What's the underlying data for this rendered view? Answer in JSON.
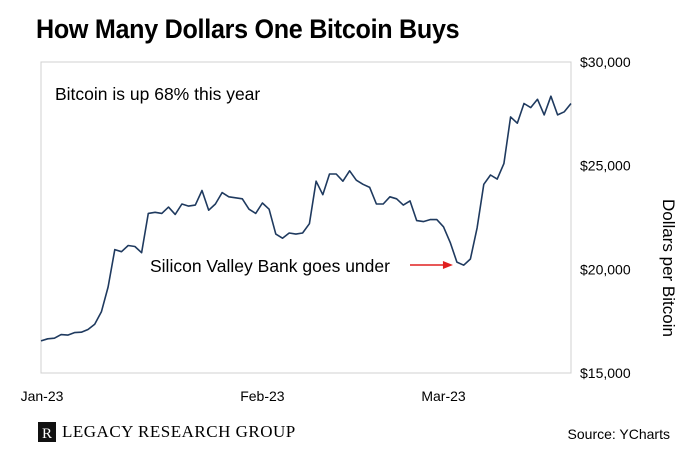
{
  "header": {
    "title": "How Many Dollars One Bitcoin Buys"
  },
  "footer": {
    "logo_icon": "legacy-research-logo-icon",
    "logo_text": "LEGACY RESEARCH GROUP",
    "source": "Source: YCharts"
  },
  "chart_data": {
    "type": "line",
    "title": "How Many Dollars One Bitcoin Buys",
    "xlabel": "",
    "ylabel": "Dollars per Bitcoin",
    "x_tick_labels": [
      "Jan-23",
      "Feb-23",
      "Mar-23"
    ],
    "y_tick_labels": [
      "$15,000",
      "$20,000",
      "$25,000",
      "$30,000"
    ],
    "ylim": [
      15000,
      30000
    ],
    "grid": false,
    "line_color": "#1f3a5f",
    "series": [
      {
        "values": [
          16550,
          16650,
          16680,
          16850,
          16830,
          16950,
          16970,
          17100,
          17350,
          17950,
          19150,
          20950,
          20850,
          21150,
          21100,
          20800,
          22700,
          22750,
          22700,
          23000,
          22650,
          23150,
          23050,
          23100,
          23800,
          22850,
          23150,
          23700,
          23500,
          23450,
          23400,
          22900,
          22700,
          23200,
          22900,
          21700,
          21500,
          21750,
          21700,
          21750,
          22200,
          24250,
          23600,
          24600,
          24600,
          24250,
          24750,
          24300,
          24100,
          23950,
          23150,
          23150,
          23500,
          23400,
          23100,
          23300,
          22350,
          22300,
          22400,
          22400,
          22050,
          21300,
          20350,
          20200,
          20500,
          22000,
          24100,
          24550,
          24350,
          25100,
          27350,
          27050,
          28000,
          27800,
          28200,
          27450,
          28350,
          27450,
          27600,
          28000
        ]
      }
    ],
    "annotations": [
      {
        "text": "Bitcoin is up 68% this year"
      },
      {
        "text": "Silicon Valley Bank goes under",
        "arrow_color": "#e02020",
        "points_to_index": 62
      }
    ]
  }
}
